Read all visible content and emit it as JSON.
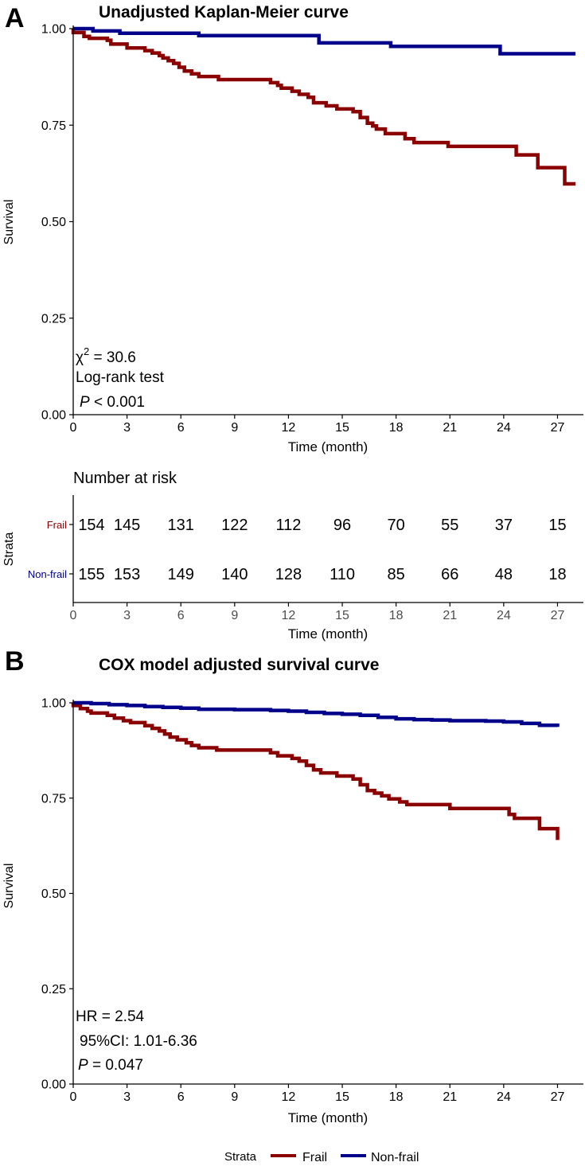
{
  "colors": {
    "frail": "#8B0000",
    "nonfrail": "#00008B"
  },
  "panel_a": {
    "letter": "A",
    "annotation": {
      "chi_sym": "χ",
      "chi_sup": "2",
      "chi_rest": " = 30.6",
      "test": "Log-rank test",
      "p_sym": "P",
      "p_rest": " < 0.001"
    }
  },
  "risk_table": {
    "title": "Number at risk",
    "strata_label": "Strata",
    "xlabel": "Time (month)",
    "x_ticks": [
      0,
      3,
      6,
      9,
      12,
      15,
      18,
      21,
      24,
      27
    ],
    "rows": [
      {
        "label": "Frail",
        "values": [
          "154",
          "145",
          "131",
          "122",
          "112",
          "96",
          "70",
          "55",
          "37",
          "15"
        ]
      },
      {
        "label": "Non-frail",
        "values": [
          "155",
          "153",
          "149",
          "140",
          "128",
          "110",
          "85",
          "66",
          "48",
          "18"
        ]
      }
    ]
  },
  "panel_b": {
    "letter": "B",
    "annotation": {
      "hr": "HR = 2.54",
      "ci": "95%CI: 1.01-6.36",
      "p_sym": "P",
      "p_rest": " = 0.047"
    }
  },
  "legend": {
    "title": "Strata",
    "items": [
      "Frail",
      "Non-frail"
    ]
  },
  "chart_data": [
    {
      "type": "line",
      "title": "Unadjusted Kaplan-Meier curve",
      "xlabel": "Time (month)",
      "ylabel": "Survival",
      "xlim": [
        0,
        28
      ],
      "ylim": [
        0,
        1
      ],
      "x_ticks": [
        0,
        3,
        6,
        9,
        12,
        15,
        18,
        21,
        24,
        27
      ],
      "y_ticks": [
        "0.00",
        "0.25",
        "0.50",
        "0.75",
        "1.00"
      ],
      "step": true,
      "series": [
        {
          "name": "Frail",
          "color": "#8B0000",
          "points": [
            [
              0,
              1
            ],
            [
              0,
              0.99
            ],
            [
              0.6,
              0.98
            ],
            [
              0.9,
              0.975
            ],
            [
              1.9,
              0.97
            ],
            [
              2.1,
              0.96
            ],
            [
              2.9,
              0.96
            ],
            [
              3.0,
              0.95
            ],
            [
              3.9,
              0.95
            ],
            [
              4.0,
              0.943
            ],
            [
              4.4,
              0.937
            ],
            [
              4.8,
              0.93
            ],
            [
              5.0,
              0.924
            ],
            [
              5.3,
              0.917
            ],
            [
              5.6,
              0.91
            ],
            [
              5.9,
              0.9
            ],
            [
              6.2,
              0.89
            ],
            [
              6.6,
              0.883
            ],
            [
              7.0,
              0.876
            ],
            [
              7.9,
              0.876
            ],
            [
              8.1,
              0.868
            ],
            [
              10.8,
              0.868
            ],
            [
              11.0,
              0.86
            ],
            [
              11.4,
              0.853
            ],
            [
              11.6,
              0.846
            ],
            [
              12.0,
              0.846
            ],
            [
              12.2,
              0.838
            ],
            [
              12.6,
              0.83
            ],
            [
              13.1,
              0.822
            ],
            [
              13.4,
              0.808
            ],
            [
              14.1,
              0.8
            ],
            [
              14.7,
              0.792
            ],
            [
              15.6,
              0.785
            ],
            [
              16.0,
              0.77
            ],
            [
              16.4,
              0.755
            ],
            [
              16.7,
              0.748
            ],
            [
              16.9,
              0.74
            ],
            [
              17.4,
              0.728
            ],
            [
              18.2,
              0.728
            ],
            [
              18.5,
              0.715
            ],
            [
              19.0,
              0.705
            ],
            [
              20.7,
              0.705
            ],
            [
              20.9,
              0.695
            ],
            [
              24.5,
              0.695
            ],
            [
              24.7,
              0.673
            ],
            [
              25.7,
              0.673
            ],
            [
              25.9,
              0.64
            ],
            [
              27.2,
              0.64
            ],
            [
              27.4,
              0.598
            ],
            [
              28,
              0.598
            ]
          ]
        },
        {
          "name": "Non-frail",
          "color": "#00008B",
          "points": [
            [
              0,
              1
            ],
            [
              1.0,
              1
            ],
            [
              1.1,
              0.994
            ],
            [
              2.5,
              0.994
            ],
            [
              2.6,
              0.988
            ],
            [
              6.9,
              0.988
            ],
            [
              7.0,
              0.982
            ],
            [
              13.6,
              0.982
            ],
            [
              13.7,
              0.963
            ],
            [
              17.6,
              0.963
            ],
            [
              17.7,
              0.954
            ],
            [
              23.7,
              0.954
            ],
            [
              23.8,
              0.935
            ],
            [
              28,
              0.935
            ]
          ]
        }
      ]
    },
    {
      "type": "line",
      "title": "COX model adjusted survival curve",
      "xlabel": "Time (month)",
      "ylabel": "Survival",
      "xlim": [
        0,
        28
      ],
      "ylim": [
        0,
        1
      ],
      "x_ticks": [
        0,
        3,
        6,
        9,
        12,
        15,
        18,
        21,
        24,
        27
      ],
      "y_ticks": [
        "0.00",
        "0.25",
        "0.50",
        "0.75",
        "1.00"
      ],
      "step": true,
      "series": [
        {
          "name": "Frail",
          "color": "#8B0000",
          "points": [
            [
              0,
              1
            ],
            [
              0,
              0.993
            ],
            [
              0.4,
              0.985
            ],
            [
              0.8,
              0.978
            ],
            [
              1.0,
              0.973
            ],
            [
              1.9,
              0.967
            ],
            [
              2.3,
              0.96
            ],
            [
              2.8,
              0.953
            ],
            [
              3.2,
              0.948
            ],
            [
              4.0,
              0.94
            ],
            [
              4.4,
              0.933
            ],
            [
              4.8,
              0.926
            ],
            [
              5.1,
              0.918
            ],
            [
              5.4,
              0.91
            ],
            [
              5.8,
              0.903
            ],
            [
              6.3,
              0.895
            ],
            [
              6.6,
              0.888
            ],
            [
              7.0,
              0.882
            ],
            [
              8.0,
              0.876
            ],
            [
              10.8,
              0.876
            ],
            [
              11.0,
              0.869
            ],
            [
              11.4,
              0.861
            ],
            [
              12.2,
              0.854
            ],
            [
              12.6,
              0.847
            ],
            [
              13.0,
              0.836
            ],
            [
              13.4,
              0.824
            ],
            [
              13.8,
              0.816
            ],
            [
              14.7,
              0.808
            ],
            [
              15.6,
              0.8
            ],
            [
              16.0,
              0.785
            ],
            [
              16.4,
              0.77
            ],
            [
              16.8,
              0.763
            ],
            [
              17.2,
              0.756
            ],
            [
              17.6,
              0.748
            ],
            [
              18.2,
              0.74
            ],
            [
              18.6,
              0.733
            ],
            [
              20.8,
              0.733
            ],
            [
              21.0,
              0.723
            ],
            [
              24.0,
              0.723
            ],
            [
              24.3,
              0.707
            ],
            [
              24.6,
              0.697
            ],
            [
              25.8,
              0.697
            ],
            [
              26.0,
              0.67
            ],
            [
              26.9,
              0.67
            ],
            [
              27.0,
              0.64
            ]
          ]
        },
        {
          "name": "Non-frail",
          "color": "#00008B",
          "points": [
            [
              0,
              1
            ],
            [
              1.0,
              0.998
            ],
            [
              2.0,
              0.995
            ],
            [
              3.0,
              0.993
            ],
            [
              4.0,
              0.99
            ],
            [
              5.0,
              0.988
            ],
            [
              6.0,
              0.986
            ],
            [
              7.0,
              0.983
            ],
            [
              9.0,
              0.982
            ],
            [
              11.0,
              0.98
            ],
            [
              12.0,
              0.978
            ],
            [
              13.0,
              0.975
            ],
            [
              14.0,
              0.972
            ],
            [
              15.0,
              0.97
            ],
            [
              16.0,
              0.967
            ],
            [
              17.0,
              0.962
            ],
            [
              18.0,
              0.958
            ],
            [
              19.0,
              0.956
            ],
            [
              20.0,
              0.955
            ],
            [
              21.0,
              0.953
            ],
            [
              23.0,
              0.952
            ],
            [
              24.0,
              0.95
            ],
            [
              25.0,
              0.946
            ],
            [
              26.0,
              0.941
            ],
            [
              27.0,
              0.937
            ]
          ]
        }
      ]
    }
  ]
}
